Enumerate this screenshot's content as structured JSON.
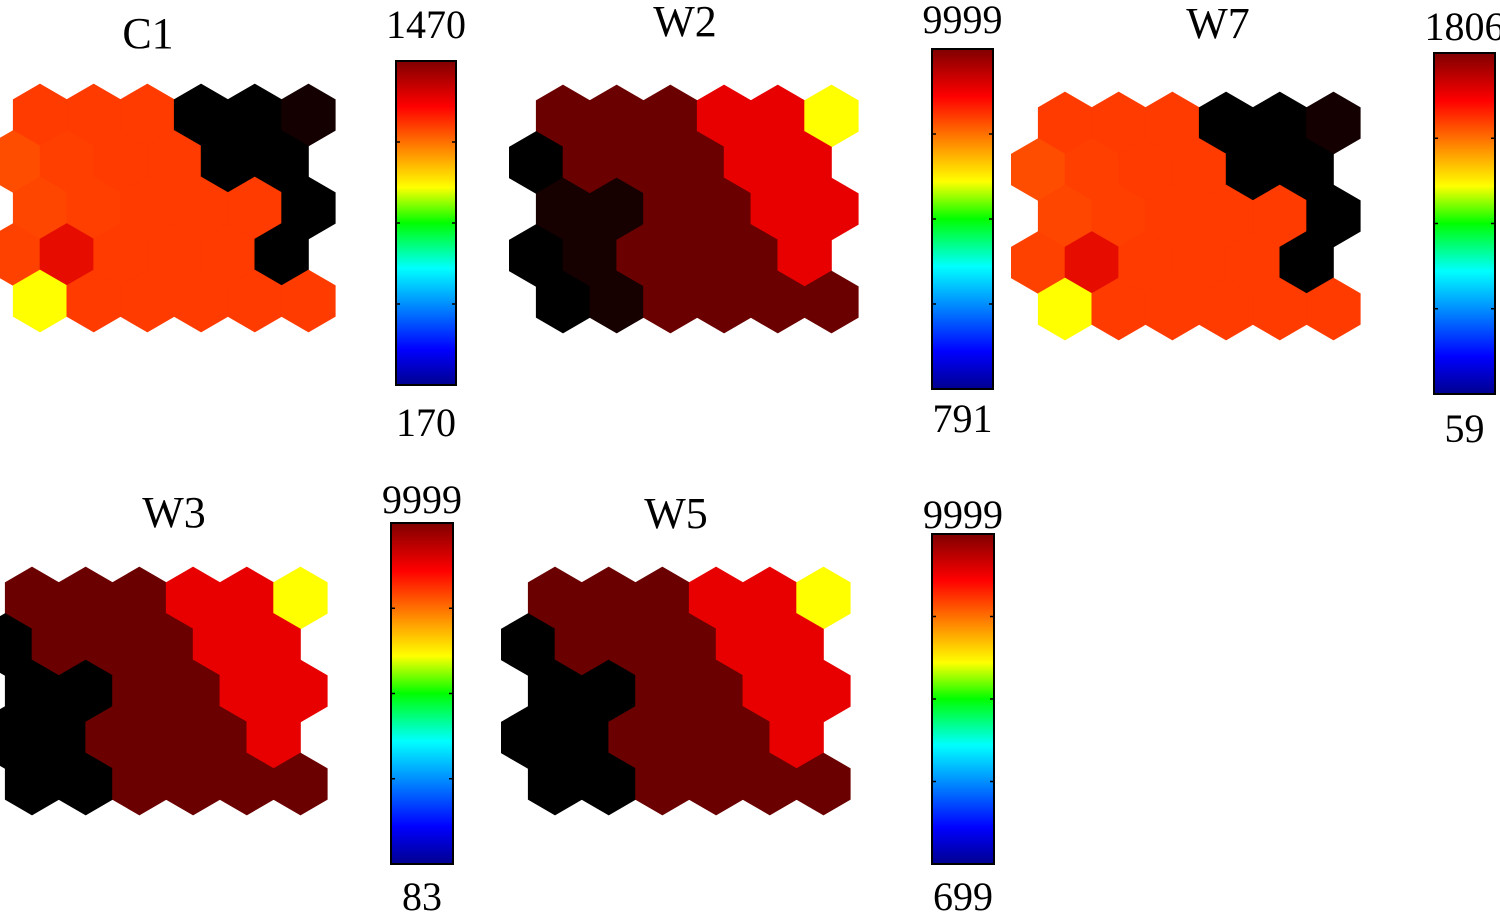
{
  "chart_data": [
    {
      "type": "heatmap",
      "title": "C1",
      "colorbar": {
        "min": 170,
        "max": 1470,
        "min_label": "170",
        "max_label": "1470"
      },
      "grid": {
        "rows": 5,
        "cols": 6,
        "offset_rows": "odd"
      },
      "cells": [
        [
          "#ff3b00",
          "#ff3b00",
          "#ff3b00",
          "#000000",
          "#000000",
          "#140000"
        ],
        [
          "#ff4d00",
          "#ff3f00",
          "#ff3b00",
          "#ff3b00",
          "#000000",
          "#000000"
        ],
        [
          "#ff4600",
          "#ff3f00",
          "#ff3b00",
          "#ff3b00",
          "#ff3b00",
          "#000000"
        ],
        [
          "#ff4100",
          "#e60d00",
          "#ff3b00",
          "#ff3b00",
          "#ff3b00",
          "#000000"
        ],
        [
          "#ffff00",
          "#ff3b00",
          "#ff3b00",
          "#ff3b00",
          "#ff3b00",
          "#ff3b00"
        ]
      ]
    },
    {
      "type": "heatmap",
      "title": "W2",
      "colorbar": {
        "min": 791,
        "max": 9999,
        "min_label": "791",
        "max_label": "9999"
      },
      "grid": {
        "rows": 5,
        "cols": 6,
        "offset_rows": "odd"
      },
      "cells": [
        [
          "#6b0000",
          "#6b0000",
          "#6b0000",
          "#e80000",
          "#e80000",
          "#ffff00"
        ],
        [
          "#000000",
          "#6b0000",
          "#6b0000",
          "#6b0000",
          "#e80000",
          "#e80000"
        ],
        [
          "#160000",
          "#160000",
          "#6b0000",
          "#6b0000",
          "#e80000",
          "#e80000"
        ],
        [
          "#000000",
          "#160000",
          "#6b0000",
          "#6b0000",
          "#6b0000",
          "#e80000"
        ],
        [
          "#000000",
          "#160000",
          "#6b0000",
          "#6b0000",
          "#6b0000",
          "#6b0000"
        ]
      ]
    },
    {
      "type": "heatmap",
      "title": "W7",
      "colorbar": {
        "min": 59,
        "max": 1806,
        "min_label": "59",
        "max_label": "1806"
      },
      "grid": {
        "rows": 5,
        "cols": 6,
        "offset_rows": "odd"
      },
      "cells": [
        [
          "#ff3b00",
          "#ff3b00",
          "#ff3b00",
          "#000000",
          "#000000",
          "#140000"
        ],
        [
          "#ff4d00",
          "#ff3f00",
          "#ff3b00",
          "#ff3b00",
          "#000000",
          "#000000"
        ],
        [
          "#ff4600",
          "#ff3f00",
          "#ff3b00",
          "#ff3b00",
          "#ff3b00",
          "#000000"
        ],
        [
          "#ff4100",
          "#e60d00",
          "#ff3b00",
          "#ff3b00",
          "#ff3b00",
          "#000000"
        ],
        [
          "#ffff00",
          "#ff3b00",
          "#ff3b00",
          "#ff3b00",
          "#ff3b00",
          "#ff3b00"
        ]
      ]
    },
    {
      "type": "heatmap",
      "title": "W3",
      "colorbar": {
        "min": 83,
        "max": 9999,
        "min_label": "83",
        "max_label": "9999"
      },
      "grid": {
        "rows": 5,
        "cols": 6,
        "offset_rows": "odd"
      },
      "cells": [
        [
          "#6b0000",
          "#6b0000",
          "#6b0000",
          "#e80000",
          "#e80000",
          "#ffff00"
        ],
        [
          "#000000",
          "#6b0000",
          "#6b0000",
          "#6b0000",
          "#e80000",
          "#e80000"
        ],
        [
          "#000000",
          "#000000",
          "#6b0000",
          "#6b0000",
          "#e80000",
          "#e80000"
        ],
        [
          "#000000",
          "#000000",
          "#6b0000",
          "#6b0000",
          "#6b0000",
          "#e80000"
        ],
        [
          "#000000",
          "#000000",
          "#6b0000",
          "#6b0000",
          "#6b0000",
          "#6b0000"
        ]
      ]
    },
    {
      "type": "heatmap",
      "title": "W5",
      "colorbar": {
        "min": 699,
        "max": 9999,
        "min_label": "699",
        "max_label": "9999"
      },
      "grid": {
        "rows": 5,
        "cols": 6,
        "offset_rows": "odd"
      },
      "cells": [
        [
          "#6b0000",
          "#6b0000",
          "#6b0000",
          "#e80000",
          "#e80000",
          "#ffff00"
        ],
        [
          "#000000",
          "#6b0000",
          "#6b0000",
          "#6b0000",
          "#e80000",
          "#e80000"
        ],
        [
          "#000000",
          "#000000",
          "#6b0000",
          "#6b0000",
          "#e80000",
          "#e80000"
        ],
        [
          "#000000",
          "#000000",
          "#6b0000",
          "#6b0000",
          "#6b0000",
          "#e80000"
        ],
        [
          "#000000",
          "#000000",
          "#6b0000",
          "#6b0000",
          "#6b0000",
          "#6b0000"
        ]
      ]
    }
  ],
  "colormap": "jet"
}
